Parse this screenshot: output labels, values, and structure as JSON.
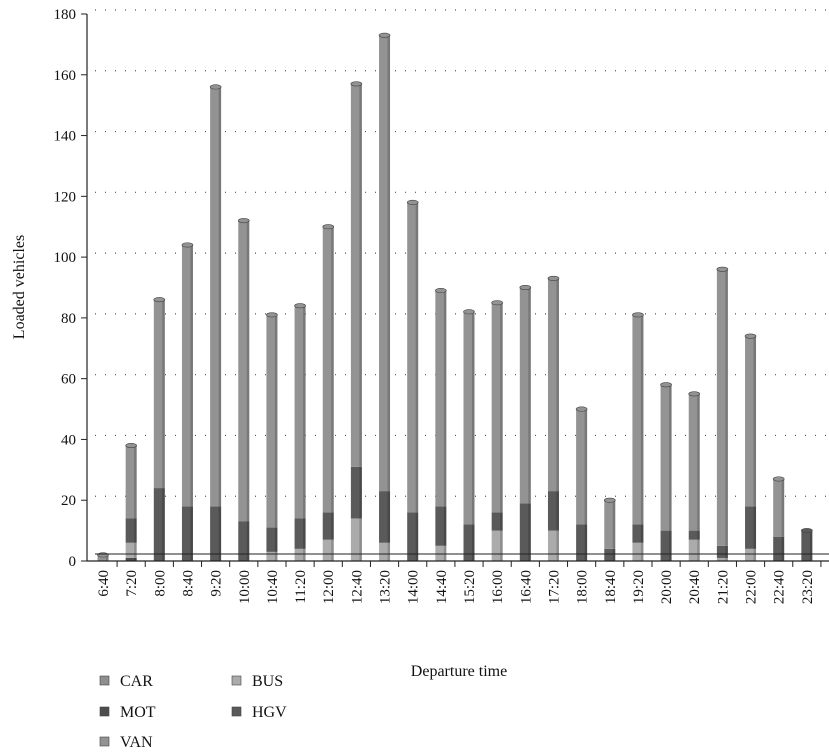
{
  "chart_data": {
    "type": "bar",
    "stacked": true,
    "title": "",
    "xlabel": "Departure time",
    "ylabel": "Loaded vehicles",
    "ylim": [
      0,
      180
    ],
    "yticks": [
      0,
      20,
      40,
      60,
      80,
      100,
      120,
      140,
      160,
      180
    ],
    "grid": "horizontal-dotted",
    "legend_position": "bottom-left",
    "categories": [
      "6:40",
      "7:20",
      "8:00",
      "8:40",
      "9:20",
      "10:00",
      "10:40",
      "11:20",
      "12:00",
      "12:40",
      "13:20",
      "14:00",
      "14:40",
      "15:20",
      "16:00",
      "16:40",
      "17:20",
      "18:00",
      "18:40",
      "19:20",
      "20:00",
      "20:40",
      "21:20",
      "22:00",
      "22:40",
      "23:20"
    ],
    "series": [
      {
        "name": "CAR",
        "color": "#8f8f8f",
        "values": [
          0,
          0,
          0,
          0,
          0,
          0,
          0,
          0,
          0,
          0,
          0,
          0,
          0,
          0,
          0,
          0,
          0,
          0,
          0,
          0,
          0,
          0,
          0,
          0,
          0,
          0
        ]
      },
      {
        "name": "MOT",
        "color": "#4d4d4d",
        "values": [
          0,
          1,
          0,
          0,
          0,
          0,
          0,
          0,
          0,
          0,
          0,
          0,
          0,
          0,
          0,
          0,
          0,
          0,
          0,
          0,
          0,
          0,
          0,
          0,
          0,
          0
        ]
      },
      {
        "name": "BUS",
        "color": "#ababab",
        "values": [
          0,
          5,
          0,
          0,
          0,
          0,
          3,
          4,
          7,
          14,
          6,
          0,
          5,
          0,
          10,
          0,
          10,
          0,
          0,
          6,
          0,
          7,
          1,
          4,
          0,
          0
        ]
      },
      {
        "name": "HGV",
        "color": "#5a5a5a",
        "values": [
          0,
          8,
          24,
          18,
          18,
          13,
          8,
          10,
          9,
          17,
          17,
          16,
          13,
          12,
          6,
          19,
          13,
          12,
          4,
          6,
          10,
          3,
          4,
          14,
          8,
          10
        ]
      },
      {
        "name": "VAN",
        "color": "#939393",
        "values": [
          2,
          24,
          62,
          86,
          138,
          99,
          70,
          70,
          94,
          126,
          150,
          102,
          71,
          70,
          69,
          71,
          70,
          38,
          16,
          69,
          48,
          45,
          91,
          56,
          19,
          0
        ]
      }
    ],
    "totals": [
      2,
      38,
      86,
      104,
      156,
      112,
      81,
      84,
      110,
      157,
      173,
      118,
      89,
      82,
      85,
      90,
      93,
      50,
      20,
      81,
      58,
      55,
      96,
      74,
      27,
      10
    ]
  }
}
